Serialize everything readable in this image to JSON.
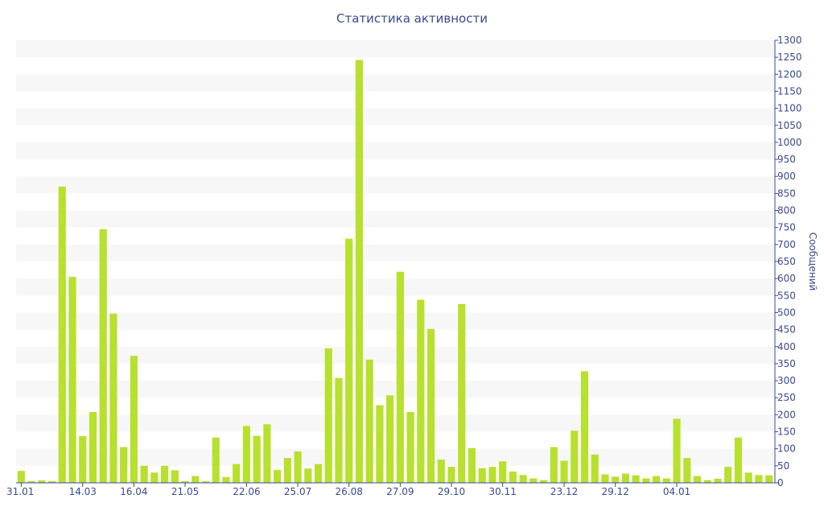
{
  "chart_data": {
    "type": "bar",
    "title": "Статистика активности",
    "ylabel": "Сообщений",
    "xlabel": "",
    "ylim": [
      0,
      1300
    ],
    "y_tick_step": 50,
    "y_axis_side": "right",
    "bar_color": "#b8e02e",
    "band_color": "#f7f7f7",
    "axis_color": "#3a4a8c",
    "x_tick_labels": [
      {
        "label": "31.01",
        "index": 0
      },
      {
        "label": "14.03",
        "index": 6
      },
      {
        "label": "16.04",
        "index": 11
      },
      {
        "label": "21.05",
        "index": 16
      },
      {
        "label": "22.06",
        "index": 22
      },
      {
        "label": "25.07",
        "index": 27
      },
      {
        "label": "26.08",
        "index": 32
      },
      {
        "label": "27.09",
        "index": 37
      },
      {
        "label": "29.10",
        "index": 42
      },
      {
        "label": "30.11",
        "index": 47
      },
      {
        "label": "23.12",
        "index": 53
      },
      {
        "label": "29.12",
        "index": 58
      },
      {
        "label": "04.01",
        "index": 64
      }
    ],
    "values": [
      35,
      5,
      7,
      5,
      870,
      605,
      137,
      208,
      745,
      497,
      105,
      373,
      50,
      30,
      50,
      37,
      5,
      20,
      5,
      133,
      17,
      55,
      167,
      138,
      172,
      38,
      73,
      92,
      42,
      55,
      395,
      308,
      717,
      1242,
      362,
      228,
      257,
      620,
      208,
      538,
      452,
      68,
      47,
      525,
      102,
      43,
      47,
      63,
      33,
      23,
      13,
      8,
      105,
      65,
      153,
      328,
      83,
      25,
      18,
      27,
      22,
      13,
      20,
      13,
      188,
      73,
      20,
      8,
      12,
      47,
      133,
      30,
      23,
      22
    ]
  }
}
